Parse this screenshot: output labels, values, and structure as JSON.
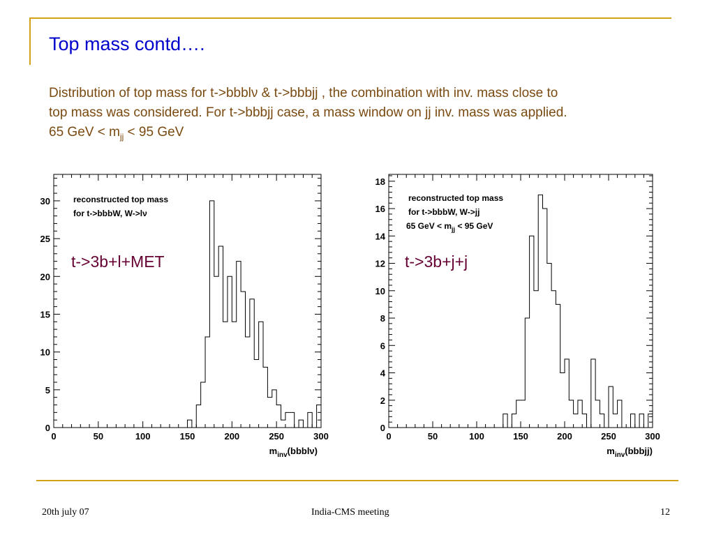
{
  "slide": {
    "title": "Top mass contd….",
    "para_line1": "Distribution of top mass for t->bbblν & t->bbbjj , the combination with inv. mass close to",
    "para_line2": "top mass was considered. For t->bbbjj case, a mass window on jj inv. mass was applied.",
    "para_line3_pre": "65 GeV < m",
    "para_line3_sub": "jj",
    "para_line3_post": " < 95 GeV"
  },
  "footer": {
    "date": "20th july 07",
    "meeting": "India-CMS meeting",
    "page": "12"
  },
  "chart_data": [
    {
      "type": "bar",
      "histogram": true,
      "legend_line1": "reconstructed top mass",
      "legend_line2": "for t->bbbW, W->lν",
      "overlay_label": "t->3b+l+MET",
      "xlabel_main": "m",
      "xlabel_sub": "inv",
      "xlabel_paren": "(bbblν)",
      "xlim": [
        0,
        300
      ],
      "ylim": [
        0,
        33.5
      ],
      "bin_width": 5,
      "xticks": [
        "0",
        "50",
        "100",
        "150",
        "200",
        "250",
        "300"
      ],
      "yticks": [
        "0",
        "5",
        "10",
        "15",
        "20",
        "25",
        "30"
      ],
      "bin_starts": [
        150,
        155,
        160,
        165,
        170,
        175,
        180,
        185,
        190,
        195,
        200,
        205,
        210,
        215,
        220,
        225,
        230,
        235,
        240,
        245,
        250,
        255,
        260,
        265,
        270,
        275,
        280,
        285,
        290,
        295
      ],
      "values": [
        1,
        0,
        3,
        6,
        12,
        30,
        20,
        24,
        14,
        20,
        14,
        22,
        18,
        12,
        17,
        9,
        14,
        8,
        4,
        5,
        3,
        1,
        2,
        2,
        0,
        1,
        0,
        2,
        0,
        3
      ]
    },
    {
      "type": "bar",
      "histogram": true,
      "legend_line1": "reconstructed top mass",
      "legend_line2": "for t->bbbW, W->jj",
      "legend_line3_pre": "65 GeV < m",
      "legend_line3_sub": "jj",
      "legend_line3_post": " < 95 GeV",
      "overlay_label": "t->3b+j+j",
      "xlabel_main": "m",
      "xlabel_sub": "inv",
      "xlabel_paren": "(bbbjj)",
      "xlim": [
        0,
        300
      ],
      "ylim": [
        0,
        18.5
      ],
      "bin_width": 5,
      "xticks": [
        "0",
        "50",
        "100",
        "150",
        "200",
        "250",
        "300"
      ],
      "yticks": [
        "0",
        "2",
        "4",
        "6",
        "8",
        "10",
        "12",
        "14",
        "16",
        "18"
      ],
      "bin_starts": [
        130,
        135,
        140,
        145,
        150,
        155,
        160,
        165,
        170,
        175,
        180,
        185,
        190,
        195,
        200,
        205,
        210,
        215,
        220,
        225,
        230,
        235,
        240,
        245,
        250,
        255,
        260,
        265,
        270,
        275,
        280,
        285,
        290,
        295
      ],
      "values": [
        1,
        0,
        1,
        2,
        2,
        8,
        14,
        10,
        17,
        16,
        12,
        10,
        9,
        4,
        5,
        2,
        1,
        2,
        1,
        0,
        5,
        2,
        1,
        0,
        3,
        1,
        2,
        0,
        0,
        1,
        0,
        1,
        0,
        1
      ]
    }
  ]
}
